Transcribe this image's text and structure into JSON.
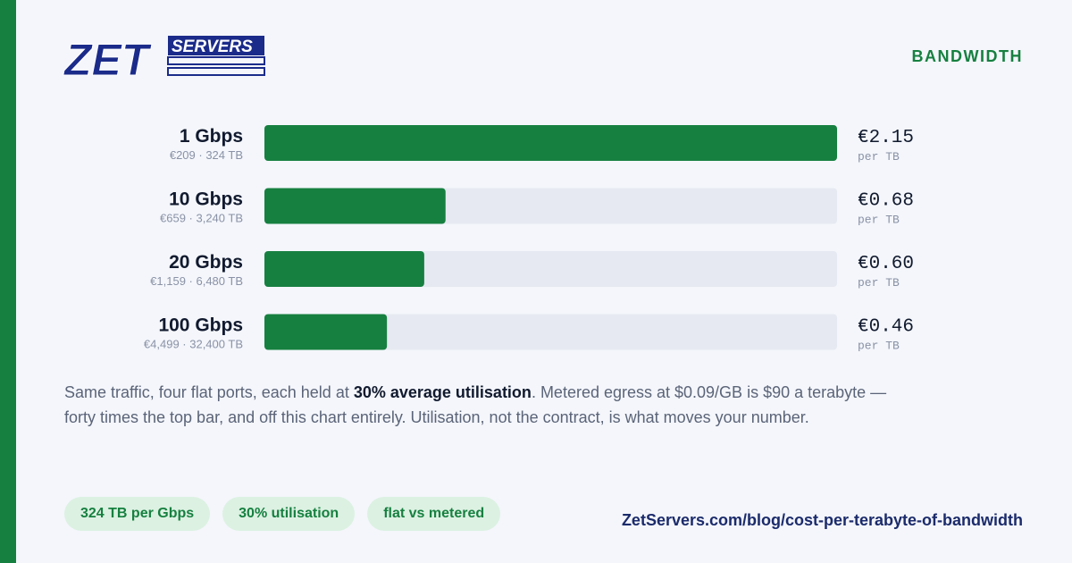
{
  "logo": {
    "primary": "ZET",
    "secondary": "SERVERS"
  },
  "section": "BANDWIDTH",
  "chart_data": {
    "type": "bar",
    "orientation": "horizontal",
    "categories": [
      "1 Gbps",
      "10 Gbps",
      "20 Gbps",
      "100 Gbps"
    ],
    "sublabels": [
      "€209 · 324 TB",
      "€659 · 3,240 TB",
      "€1,159 · 6,480 TB",
      "€4,499 · 32,400 TB"
    ],
    "values": [
      2.15,
      0.68,
      0.6,
      0.46
    ],
    "value_labels": [
      "€2.15",
      "€0.68",
      "€0.60",
      "€0.46"
    ],
    "unit_label": "per TB",
    "xlim": [
      0,
      2.15
    ],
    "color": "#168040",
    "track_color": "#e6e9f1"
  },
  "caption": {
    "before": "Same traffic, four flat ports, each held at ",
    "emphasis": "30% average utilisation",
    "after": ". Metered egress at $0.09/GB is $90 a terabyte — forty times the top bar, and off this chart entirely. Utilisation, not the contract, is what moves your number."
  },
  "tags": [
    "324 TB per Gbps",
    "30% utilisation",
    "flat vs metered"
  ],
  "url": "ZetServers.com/blog/cost-per-terabyte-of-bandwidth"
}
